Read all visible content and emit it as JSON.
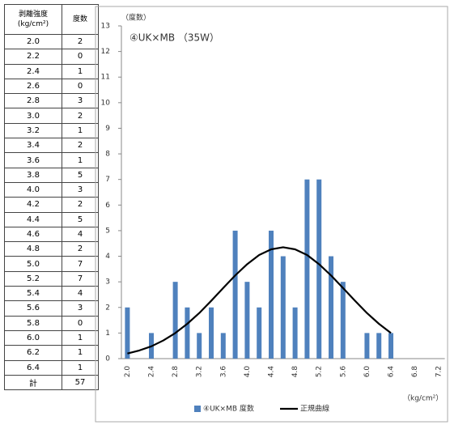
{
  "table": {
    "header": [
      "剥離強度\n(kg/cm²)",
      "度数"
    ],
    "rows": [
      [
        "2.0",
        "2"
      ],
      [
        "2.2",
        "0"
      ],
      [
        "2.4",
        "1"
      ],
      [
        "2.6",
        "0"
      ],
      [
        "2.8",
        "3"
      ],
      [
        "3.0",
        "2"
      ],
      [
        "3.2",
        "1"
      ],
      [
        "3.4",
        "2"
      ],
      [
        "3.6",
        "1"
      ],
      [
        "3.8",
        "5"
      ],
      [
        "4.0",
        "3"
      ],
      [
        "4.2",
        "2"
      ],
      [
        "4.4",
        "5"
      ],
      [
        "4.6",
        "4"
      ],
      [
        "4.8",
        "2"
      ],
      [
        "5.0",
        "7"
      ],
      [
        "5.2",
        "7"
      ],
      [
        "5.4",
        "4"
      ],
      [
        "5.6",
        "3"
      ],
      [
        "5.8",
        "0"
      ],
      [
        "6.0",
        "1"
      ],
      [
        "6.2",
        "1"
      ],
      [
        "6.4",
        "1"
      ],
      [
        "計",
        "57"
      ]
    ]
  },
  "chart_data": {
    "type": "bar",
    "title": "④UK×MB （35W）",
    "y_label": "（度数）",
    "x_label": "（kg/cm²）",
    "categories": [
      "2.0",
      null,
      "2.4",
      null,
      "2.8",
      null,
      "3.2",
      null,
      "3.6",
      null,
      "4.0",
      null,
      "4.4",
      null,
      "4.8",
      null,
      "5.2",
      null,
      "5.6",
      null,
      "6.0",
      null,
      "6.4",
      null,
      "6.8",
      null,
      "7.2"
    ],
    "series": [
      {
        "name": "④UK×MB 度数",
        "color": "#4f81bd",
        "values": [
          2,
          0,
          1,
          0,
          3,
          2,
          1,
          2,
          1,
          5,
          3,
          2,
          5,
          4,
          2,
          7,
          7,
          4,
          3,
          0,
          1,
          1,
          1,
          null,
          null,
          null,
          null
        ]
      },
      {
        "name": "正規曲線",
        "color": "#000000",
        "type": "line",
        "values": [
          0.2,
          0.32,
          0.48,
          0.71,
          1.0,
          1.36,
          1.78,
          2.26,
          2.76,
          3.25,
          3.69,
          4.05,
          4.27,
          4.35,
          4.27,
          4.05,
          3.69,
          3.25,
          2.76,
          2.26,
          1.78,
          1.36,
          1.0,
          null,
          null,
          null,
          null
        ]
      }
    ],
    "ylim": [
      0,
      13
    ],
    "yticks": [
      0,
      1,
      2,
      3,
      4,
      5,
      6,
      7,
      8,
      9,
      10,
      11,
      12,
      13
    ]
  }
}
